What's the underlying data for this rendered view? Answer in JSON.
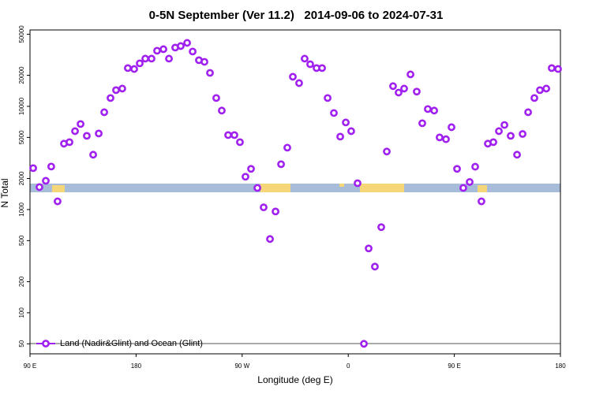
{
  "chart_data": {
    "type": "scatter",
    "title": "0-5N September (Ver 11.2)   2014-09-06 to 2024-07-31",
    "xlabel": "Longitude (deg E)",
    "ylabel": "N Total",
    "log_y": true,
    "legend": "bottom-left",
    "xlim": [
      90,
      540
    ],
    "ylim": [
      40,
      55000
    ],
    "xticks": [
      {
        "value": 90,
        "label": "90 E"
      },
      180,
      {
        "value": 270,
        "label": "90 W"
      },
      {
        "value": 360,
        "label": "0"
      },
      {
        "value": 450,
        "label": "90 E"
      },
      {
        "value": 540,
        "label": "180"
      }
    ],
    "yticks": [
      50,
      100,
      200,
      500,
      1000,
      2000,
      5000,
      10000,
      20000,
      50000
    ],
    "series": [
      {
        "name": "Land (Nadir&Glint) and Ocean (Glint)",
        "color": "#a020f0",
        "x": [
          92.7,
          98,
          103.4,
          108,
          113.4,
          118.8,
          123.5,
          128.2,
          132.9,
          138.2,
          143.6,
          148.3,
          153,
          158.3,
          163,
          168.3,
          173,
          178.4,
          183.1,
          187.8,
          193.1,
          197.8,
          203.2,
          207.9,
          213.2,
          217.9,
          223.3,
          228,
          233.3,
          238,
          242.7,
          248,
          252.7,
          258.1,
          263.4,
          268.1,
          272.8,
          277.5,
          282.9,
          288.2,
          293.6,
          298.3,
          303,
          308.3,
          313,
          318.3,
          323,
          327.7,
          333.1,
          337.8,
          342.5,
          347.8,
          353.2,
          357.9,
          362.5,
          367.9,
          373.3,
          377.3,
          382.6,
          388,
          392.7,
          398,
          402.7,
          407.4,
          412.8,
          418.1,
          422.8,
          427.5,
          432.9,
          437.5,
          442.9,
          447.6,
          452.3,
          457.6,
          463,
          467.7,
          473,
          478.4,
          483.1,
          487.8,
          492.5,
          497.8,
          503.2,
          507.9,
          512.6,
          517.9,
          522.6,
          528,
          532.6,
          538
        ],
        "values": [
          2520,
          1650,
          1900,
          2610,
          1200,
          4350,
          4500,
          5750,
          6740,
          5180,
          3400,
          5460,
          8770,
          12050,
          14360,
          14860,
          23500,
          23000,
          26100,
          29000,
          29000,
          34600,
          35800,
          29000,
          37100,
          38400,
          41200,
          34000,
          28000,
          27000,
          21100,
          12050,
          9100,
          5270,
          5270,
          4500,
          2080,
          2480,
          1620,
          1050,
          518,
          958,
          2750,
          3980,
          19360,
          16800,
          29000,
          25600,
          23500,
          23500,
          12050,
          8620,
          5090,
          6980,
          5750,
          1800,
          50,
          420,
          280,
          675,
          3650,
          15700,
          13600,
          14860,
          20400,
          13900,
          6860,
          9420,
          9100,
          5000,
          4800,
          6280,
          2480,
          1620,
          1850,
          2600,
          1200,
          4350,
          4500,
          5750,
          6600,
          5180,
          3400,
          5400,
          8770,
          12050,
          14360,
          14860,
          23500,
          23000
        ]
      }
    ]
  }
}
